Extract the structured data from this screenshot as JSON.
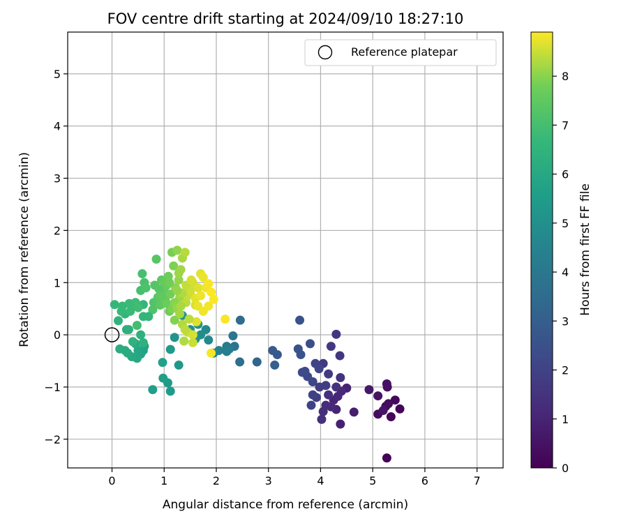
{
  "chart_data": {
    "type": "scatter",
    "title": "FOV centre drift starting at 2024/09/10 18:27:10",
    "xlabel": "Angular distance from reference (arcmin)",
    "ylabel": "Rotation from reference (arcmin)",
    "xlim": [
      -0.85,
      7.5
    ],
    "ylim": [
      -2.55,
      5.8
    ],
    "x_ticks": [
      0,
      1,
      2,
      3,
      4,
      5,
      6,
      7
    ],
    "y_ticks": [
      -2,
      -1,
      0,
      1,
      2,
      3,
      4,
      5
    ],
    "grid": true,
    "colormap": "viridis",
    "colorbar": {
      "label": "Hours from first FF file",
      "range": [
        0,
        8.9
      ],
      "ticks": [
        0,
        1,
        2,
        3,
        4,
        5,
        6,
        7,
        8
      ]
    },
    "legend": {
      "position": "top-right",
      "entries": [
        "Reference platepar"
      ]
    },
    "reference_point": {
      "x": 0,
      "y": 0
    },
    "points": [
      {
        "x": 5.27,
        "y": -2.36,
        "h": 0.05
      },
      {
        "x": 5.52,
        "y": -1.42,
        "h": 0.1
      },
      {
        "x": 5.35,
        "y": -1.57,
        "h": 0.15
      },
      {
        "x": 5.43,
        "y": -1.25,
        "h": 0.2
      },
      {
        "x": 5.25,
        "y": -1.37,
        "h": 0.25
      },
      {
        "x": 5.1,
        "y": -1.52,
        "h": 0.3
      },
      {
        "x": 5.3,
        "y": -1.32,
        "h": 0.35
      },
      {
        "x": 5.28,
        "y": -1.0,
        "h": 0.4
      },
      {
        "x": 5.27,
        "y": -0.94,
        "h": 0.45
      },
      {
        "x": 5.1,
        "y": -1.17,
        "h": 0.5
      },
      {
        "x": 5.2,
        "y": -1.45,
        "h": 0.55
      },
      {
        "x": 4.93,
        "y": -1.05,
        "h": 0.65
      },
      {
        "x": 4.64,
        "y": -1.48,
        "h": 0.8
      },
      {
        "x": 4.38,
        "y": -1.71,
        "h": 0.9
      },
      {
        "x": 4.5,
        "y": -1.02,
        "h": 0.95
      },
      {
        "x": 4.3,
        "y": -1.43,
        "h": 1.0
      },
      {
        "x": 4.25,
        "y": -1.25,
        "h": 1.05
      },
      {
        "x": 4.33,
        "y": -1.18,
        "h": 1.1
      },
      {
        "x": 4.4,
        "y": -1.08,
        "h": 1.15
      },
      {
        "x": 4.2,
        "y": -1.38,
        "h": 1.2
      },
      {
        "x": 4.1,
        "y": -1.35,
        "h": 1.25
      },
      {
        "x": 4.05,
        "y": -1.47,
        "h": 1.3
      },
      {
        "x": 4.02,
        "y": -1.62,
        "h": 1.35
      },
      {
        "x": 4.15,
        "y": -1.15,
        "h": 1.4
      },
      {
        "x": 4.3,
        "y": -1.0,
        "h": 1.45
      },
      {
        "x": 4.38,
        "y": -0.82,
        "h": 1.5
      },
      {
        "x": 4.3,
        "y": 0.01,
        "h": 1.55
      },
      {
        "x": 4.37,
        "y": -0.4,
        "h": 1.6
      },
      {
        "x": 4.2,
        "y": -0.22,
        "h": 1.65
      },
      {
        "x": 4.05,
        "y": -0.55,
        "h": 1.7
      },
      {
        "x": 4.15,
        "y": -0.75,
        "h": 1.75
      },
      {
        "x": 4.1,
        "y": -0.97,
        "h": 1.8
      },
      {
        "x": 3.98,
        "y": -1.0,
        "h": 1.85
      },
      {
        "x": 3.92,
        "y": -1.2,
        "h": 1.9
      },
      {
        "x": 3.85,
        "y": -1.15,
        "h": 1.95
      },
      {
        "x": 3.82,
        "y": -1.35,
        "h": 2.0
      },
      {
        "x": 3.9,
        "y": -0.55,
        "h": 2.05
      },
      {
        "x": 3.97,
        "y": -0.65,
        "h": 2.1
      },
      {
        "x": 3.85,
        "y": -0.9,
        "h": 2.15
      },
      {
        "x": 3.75,
        "y": -0.8,
        "h": 2.2
      },
      {
        "x": 3.7,
        "y": -0.7,
        "h": 2.25
      },
      {
        "x": 3.65,
        "y": -0.72,
        "h": 2.3
      },
      {
        "x": 3.8,
        "y": -0.17,
        "h": 2.4
      },
      {
        "x": 3.6,
        "y": 0.28,
        "h": 2.5
      },
      {
        "x": 3.57,
        "y": -0.27,
        "h": 2.55
      },
      {
        "x": 3.62,
        "y": -0.38,
        "h": 2.6
      },
      {
        "x": 3.17,
        "y": -0.38,
        "h": 2.8
      },
      {
        "x": 3.08,
        "y": -0.3,
        "h": 2.9
      },
      {
        "x": 3.12,
        "y": -0.58,
        "h": 3.0
      },
      {
        "x": 2.78,
        "y": -0.52,
        "h": 3.2
      },
      {
        "x": 2.46,
        "y": 0.28,
        "h": 3.5
      },
      {
        "x": 2.45,
        "y": -0.52,
        "h": 3.6
      },
      {
        "x": 2.35,
        "y": -0.22,
        "h": 3.8
      },
      {
        "x": 2.32,
        "y": -0.02,
        "h": 3.9
      },
      {
        "x": 2.2,
        "y": -0.22,
        "h": 4.1
      },
      {
        "x": 2.25,
        "y": -0.27,
        "h": 4.2
      },
      {
        "x": 2.2,
        "y": -0.32,
        "h": 4.3
      },
      {
        "x": 2.05,
        "y": -0.3,
        "h": 4.4
      },
      {
        "x": 1.95,
        "y": -0.35,
        "h": 4.6
      },
      {
        "x": 1.85,
        "y": -0.1,
        "h": 4.7
      },
      {
        "x": 1.8,
        "y": 0.1,
        "h": 4.8
      },
      {
        "x": 1.7,
        "y": 0.0,
        "h": 4.9
      },
      {
        "x": 1.65,
        "y": 0.2,
        "h": 5.0
      },
      {
        "x": 1.6,
        "y": -0.08,
        "h": 5.05
      },
      {
        "x": 1.5,
        "y": 0.1,
        "h": 5.1
      },
      {
        "x": 1.35,
        "y": 0.37,
        "h": 5.15
      },
      {
        "x": 1.2,
        "y": -0.05,
        "h": 5.2
      },
      {
        "x": 1.28,
        "y": -0.58,
        "h": 5.3
      },
      {
        "x": 1.12,
        "y": -0.28,
        "h": 5.4
      },
      {
        "x": 1.07,
        "y": -0.92,
        "h": 5.45
      },
      {
        "x": 1.12,
        "y": -1.08,
        "h": 5.5
      },
      {
        "x": 0.78,
        "y": -1.05,
        "h": 5.55
      },
      {
        "x": 0.98,
        "y": -0.83,
        "h": 5.6
      },
      {
        "x": 0.97,
        "y": -0.53,
        "h": 5.7
      },
      {
        "x": 0.6,
        "y": -0.3,
        "h": 5.75
      },
      {
        "x": 0.62,
        "y": -0.22,
        "h": 5.8
      },
      {
        "x": 0.55,
        "y": -0.37,
        "h": 5.85
      },
      {
        "x": 0.5,
        "y": -0.3,
        "h": 5.9
      },
      {
        "x": 0.48,
        "y": -0.45,
        "h": 5.95
      },
      {
        "x": 0.45,
        "y": -0.17,
        "h": 6.0
      },
      {
        "x": 0.38,
        "y": -0.42,
        "h": 6.05
      },
      {
        "x": 0.3,
        "y": -0.35,
        "h": 6.1
      },
      {
        "x": 0.25,
        "y": -0.3,
        "h": 6.15
      },
      {
        "x": 0.15,
        "y": -0.27,
        "h": 6.2
      },
      {
        "x": 0.28,
        "y": 0.1,
        "h": 6.25
      },
      {
        "x": 0.32,
        "y": 0.1,
        "h": 6.3
      },
      {
        "x": 0.55,
        "y": 0.0,
        "h": 6.35
      },
      {
        "x": 0.6,
        "y": -0.15,
        "h": 6.4
      },
      {
        "x": 0.12,
        "y": 0.27,
        "h": 6.45
      },
      {
        "x": 0.25,
        "y": 0.4,
        "h": 6.5
      },
      {
        "x": 0.6,
        "y": 0.35,
        "h": 6.55
      },
      {
        "x": 0.6,
        "y": 0.58,
        "h": 6.6
      },
      {
        "x": 0.05,
        "y": 0.58,
        "h": 6.65
      },
      {
        "x": 0.2,
        "y": 0.55,
        "h": 6.7
      },
      {
        "x": 0.35,
        "y": 0.45,
        "h": 6.75
      },
      {
        "x": 0.42,
        "y": 0.55,
        "h": 6.8
      },
      {
        "x": 0.45,
        "y": 0.62,
        "h": 6.85
      },
      {
        "x": 0.5,
        "y": 0.52,
        "h": 6.9
      },
      {
        "x": 0.48,
        "y": 0.18,
        "h": 6.95
      },
      {
        "x": 0.55,
        "y": 0.85,
        "h": 7.0
      },
      {
        "x": 0.58,
        "y": 1.17,
        "h": 7.05
      },
      {
        "x": 0.62,
        "y": 1.0,
        "h": 7.1
      },
      {
        "x": 0.65,
        "y": 0.9,
        "h": 7.15
      },
      {
        "x": 0.78,
        "y": 0.48,
        "h": 7.2
      },
      {
        "x": 0.8,
        "y": 0.62,
        "h": 7.25
      },
      {
        "x": 0.82,
        "y": 0.95,
        "h": 7.3
      },
      {
        "x": 0.85,
        "y": 1.45,
        "h": 7.35
      },
      {
        "x": 0.88,
        "y": 0.72,
        "h": 7.4
      },
      {
        "x": 0.92,
        "y": 0.57,
        "h": 7.45
      },
      {
        "x": 0.95,
        "y": 1.05,
        "h": 7.5
      },
      {
        "x": 1.0,
        "y": 0.85,
        "h": 7.55
      },
      {
        "x": 1.02,
        "y": 0.67,
        "h": 7.6
      },
      {
        "x": 1.05,
        "y": 0.95,
        "h": 7.65
      },
      {
        "x": 1.08,
        "y": 1.12,
        "h": 7.7
      },
      {
        "x": 1.1,
        "y": 0.45,
        "h": 7.75
      },
      {
        "x": 1.12,
        "y": 0.78,
        "h": 7.8
      },
      {
        "x": 1.15,
        "y": 1.58,
        "h": 7.85
      },
      {
        "x": 1.18,
        "y": 1.32,
        "h": 7.9
      },
      {
        "x": 1.2,
        "y": 0.28,
        "h": 7.95
      },
      {
        "x": 1.22,
        "y": 0.9,
        "h": 8.0
      },
      {
        "x": 1.25,
        "y": 1.62,
        "h": 8.05
      },
      {
        "x": 1.28,
        "y": 1.05,
        "h": 8.1
      },
      {
        "x": 1.3,
        "y": 0.72,
        "h": 8.15
      },
      {
        "x": 1.32,
        "y": 1.25,
        "h": 8.2
      },
      {
        "x": 1.35,
        "y": 1.47,
        "h": 8.25
      },
      {
        "x": 1.38,
        "y": -0.12,
        "h": 8.3
      },
      {
        "x": 1.4,
        "y": 1.58,
        "h": 8.35
      },
      {
        "x": 1.42,
        "y": 0.62,
        "h": 8.4
      },
      {
        "x": 1.45,
        "y": 0.05,
        "h": 8.45
      },
      {
        "x": 1.5,
        "y": 0.8,
        "h": 8.5
      },
      {
        "x": 1.55,
        "y": 1.0,
        "h": 8.55
      },
      {
        "x": 1.6,
        "y": 0.57,
        "h": 8.6
      },
      {
        "x": 1.65,
        "y": 0.9,
        "h": 8.65
      },
      {
        "x": 1.7,
        "y": 1.17,
        "h": 8.7
      },
      {
        "x": 1.75,
        "y": 1.1,
        "h": 8.75
      },
      {
        "x": 1.8,
        "y": 0.9,
        "h": 8.8
      },
      {
        "x": 1.85,
        "y": 0.55,
        "h": 8.82
      },
      {
        "x": 1.9,
        "y": -0.35,
        "h": 8.85
      },
      {
        "x": 2.17,
        "y": 0.3,
        "h": 8.87
      },
      {
        "x": 1.95,
        "y": 0.68,
        "h": 8.88
      },
      {
        "x": 0.7,
        "y": 0.35,
        "h": 6.6
      },
      {
        "x": 0.4,
        "y": -0.13,
        "h": 6.4
      },
      {
        "x": 0.18,
        "y": 0.45,
        "h": 6.7
      },
      {
        "x": 0.33,
        "y": 0.6,
        "h": 6.8
      },
      {
        "x": 0.9,
        "y": 0.88,
        "h": 7.35
      },
      {
        "x": 0.95,
        "y": 0.75,
        "h": 7.5
      },
      {
        "x": 1.0,
        "y": 1.0,
        "h": 7.6
      },
      {
        "x": 1.05,
        "y": 0.6,
        "h": 7.7
      },
      {
        "x": 1.1,
        "y": 1.0,
        "h": 7.8
      },
      {
        "x": 1.15,
        "y": 0.5,
        "h": 7.9
      },
      {
        "x": 1.2,
        "y": 0.62,
        "h": 8.0
      },
      {
        "x": 1.25,
        "y": 0.5,
        "h": 8.1
      },
      {
        "x": 1.3,
        "y": 0.4,
        "h": 8.2
      },
      {
        "x": 1.35,
        "y": 0.2,
        "h": 8.3
      },
      {
        "x": 1.4,
        "y": 0.1,
        "h": 8.4
      },
      {
        "x": 1.45,
        "y": 0.75,
        "h": 8.5
      },
      {
        "x": 1.5,
        "y": 0.85,
        "h": 8.55
      },
      {
        "x": 1.55,
        "y": 0.0,
        "h": 8.6
      },
      {
        "x": 1.6,
        "y": 0.7,
        "h": 8.7
      },
      {
        "x": 1.65,
        "y": 0.55,
        "h": 8.75
      },
      {
        "x": 1.7,
        "y": 0.75,
        "h": 8.78
      },
      {
        "x": 1.75,
        "y": 0.45,
        "h": 8.8
      },
      {
        "x": 1.85,
        "y": 0.98,
        "h": 8.85
      },
      {
        "x": 1.9,
        "y": 0.82,
        "h": 8.88
      },
      {
        "x": 1.35,
        "y": 0.8,
        "h": 8.3
      },
      {
        "x": 1.42,
        "y": 0.95,
        "h": 8.45
      },
      {
        "x": 1.28,
        "y": 1.18,
        "h": 8.15
      },
      {
        "x": 1.52,
        "y": 1.05,
        "h": 8.6
      },
      {
        "x": 1.62,
        "y": 0.25,
        "h": 8.65
      },
      {
        "x": 1.55,
        "y": -0.15,
        "h": 8.5
      },
      {
        "x": 1.48,
        "y": 0.3,
        "h": 8.4
      },
      {
        "x": 1.25,
        "y": 0.85,
        "h": 8.1
      },
      {
        "x": 1.32,
        "y": 0.55,
        "h": 8.25
      }
    ]
  }
}
